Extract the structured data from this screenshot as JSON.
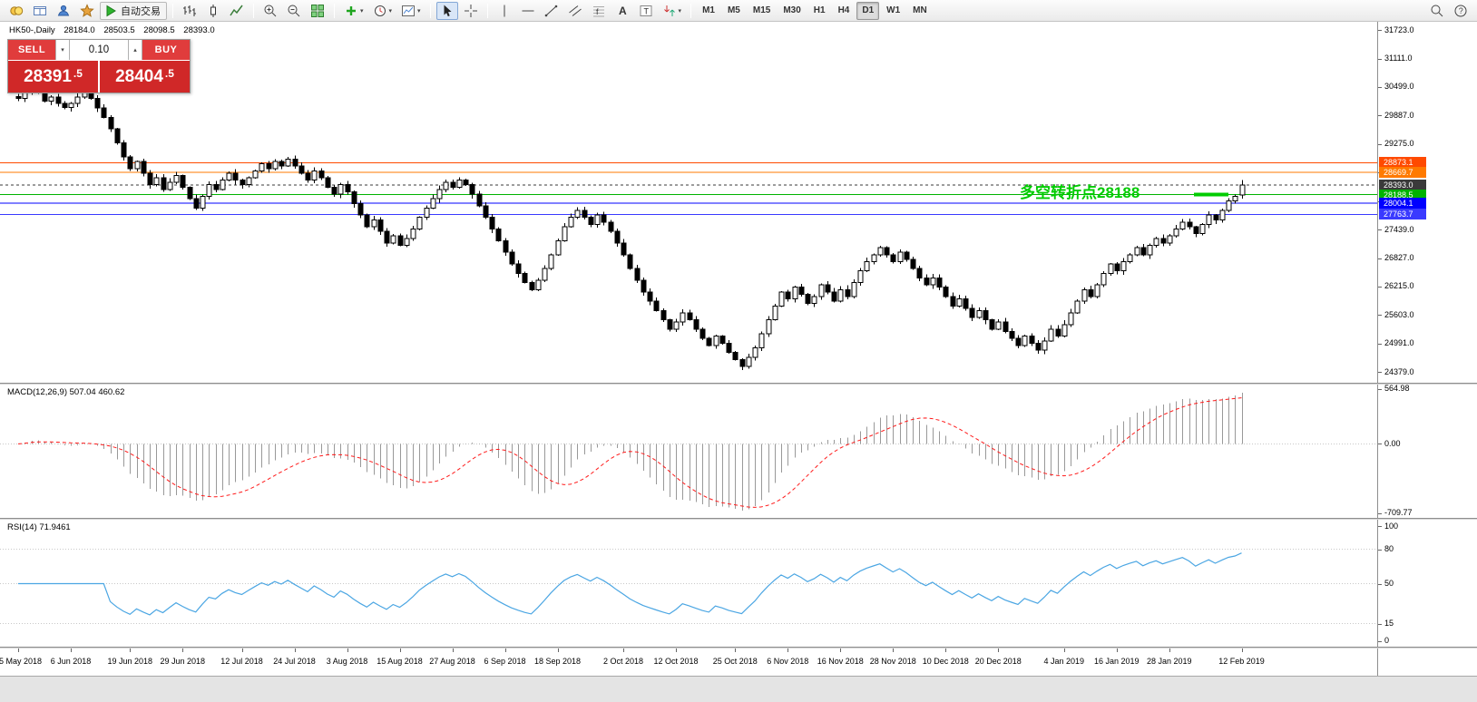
{
  "toolbar": {
    "items": [
      {
        "t": "btn",
        "name": "new-order-button",
        "icon": "order"
      },
      {
        "t": "btn",
        "name": "charts-button",
        "icon": "window"
      },
      {
        "t": "btn",
        "name": "market-watch-button",
        "icon": "profile"
      },
      {
        "t": "btn",
        "name": "navigator-button",
        "icon": "star"
      },
      {
        "t": "toggle",
        "name": "autotrading-button",
        "icon": "play",
        "label": "自动交易",
        "boxed": true
      },
      {
        "t": "sep"
      },
      {
        "t": "btn",
        "name": "bar-chart-button",
        "icon": "bars"
      },
      {
        "t": "btn",
        "name": "candlestick-chart-button",
        "icon": "candle"
      },
      {
        "t": "btn",
        "name": "line-chart-button",
        "icon": "linechart"
      },
      {
        "t": "sep"
      },
      {
        "t": "btn",
        "name": "zoom-in-button",
        "icon": "zoomin"
      },
      {
        "t": "btn",
        "name": "zoom-out-button",
        "icon": "zoomout"
      },
      {
        "t": "btn",
        "name": "tile-windows-button",
        "icon": "tile"
      },
      {
        "t": "sep"
      },
      {
        "t": "btn",
        "name": "new-chart-button",
        "icon": "plus",
        "caret": true
      },
      {
        "t": "btn",
        "name": "periods-button",
        "icon": "clock",
        "caret": true
      },
      {
        "t": "btn",
        "name": "templates-button",
        "icon": "template",
        "caret": true
      },
      {
        "t": "sep"
      },
      {
        "t": "btn",
        "name": "cursor-tool-button",
        "icon": "cursor",
        "active": true
      },
      {
        "t": "btn",
        "name": "crosshair-tool-button",
        "icon": "crosshair"
      },
      {
        "t": "sep"
      },
      {
        "t": "btn",
        "name": "vertical-line-tool-button",
        "icon": "vline"
      },
      {
        "t": "btn",
        "name": "horizontal-line-tool-button",
        "icon": "hline"
      },
      {
        "t": "btn",
        "name": "trendline-tool-button",
        "icon": "trend"
      },
      {
        "t": "btn",
        "name": "channel-tool-button",
        "icon": "channel"
      },
      {
        "t": "btn",
        "name": "fibonacci-tool-button",
        "icon": "fibo"
      },
      {
        "t": "btn",
        "name": "text-tool-button",
        "icon": "textA"
      },
      {
        "t": "btn",
        "name": "label-tool-button",
        "icon": "labelT"
      },
      {
        "t": "btn",
        "name": "arrows-tool-button",
        "icon": "arrowobj",
        "caret": true
      },
      {
        "t": "sep"
      },
      {
        "t": "tf",
        "name": "timeframe-m1",
        "label": "M1"
      },
      {
        "t": "tf",
        "name": "timeframe-m5",
        "label": "M5"
      },
      {
        "t": "tf",
        "name": "timeframe-m15",
        "label": "M15"
      },
      {
        "t": "tf",
        "name": "timeframe-m30",
        "label": "M30"
      },
      {
        "t": "tf",
        "name": "timeframe-h1",
        "label": "H1"
      },
      {
        "t": "tf",
        "name": "timeframe-h4",
        "label": "H4"
      },
      {
        "t": "tf",
        "name": "timeframe-d1",
        "label": "D1",
        "active": true
      },
      {
        "t": "tf",
        "name": "timeframe-w1",
        "label": "W1"
      },
      {
        "t": "tf",
        "name": "timeframe-mn",
        "label": "MN"
      },
      {
        "t": "btn",
        "name": "search-button",
        "icon": "search",
        "right": true
      },
      {
        "t": "btn",
        "name": "help-button",
        "icon": "help"
      }
    ]
  },
  "symbol_line": {
    "symbol": "HK50-,Daily",
    "open": "28184.0",
    "high": "28503.5",
    "low": "28098.5",
    "close": "28393.0"
  },
  "trade_panel": {
    "sell_label": "SELL",
    "buy_label": "BUY",
    "volume": "0.10",
    "sell_price_main": "28391",
    "sell_price_frac": ".5",
    "buy_price_main": "28404",
    "buy_price_frac": ".5"
  },
  "annotation": {
    "text": "多空转折点28188",
    "color": "#00cc00",
    "line_value": 28188.5
  },
  "chart_data": [
    {
      "type": "candlestick",
      "symbol": "HK50",
      "timeframe": "Daily",
      "title": "HK50-,Daily",
      "last_candle": {
        "open": 28184.0,
        "high": 28503.5,
        "low": 28098.5,
        "close": 28393.0
      },
      "ylim": [
        24150,
        31900
      ],
      "y_ticks": [
        "31723.0",
        "31111.0",
        "30499.0",
        "29887.0",
        "29275.0",
        "28663.0",
        "28051.0",
        "27439.0",
        "26827.0",
        "26215.0",
        "25603.0",
        "24991.0",
        "24379.0"
      ],
      "x_labels": [
        {
          "label": "25 May 2018",
          "i": 0
        },
        {
          "label": "6 Jun 2018",
          "i": 8
        },
        {
          "label": "19 Jun 2018",
          "i": 17
        },
        {
          "label": "29 Jun 2018",
          "i": 25
        },
        {
          "label": "12 Jul 2018",
          "i": 34
        },
        {
          "label": "24 Jul 2018",
          "i": 42
        },
        {
          "label": "3 Aug 2018",
          "i": 50
        },
        {
          "label": "15 Aug 2018",
          "i": 58
        },
        {
          "label": "27 Aug 2018",
          "i": 66
        },
        {
          "label": "6 Sep 2018",
          "i": 74
        },
        {
          "label": "18 Sep 2018",
          "i": 82
        },
        {
          "label": "2 Oct 2018",
          "i": 92
        },
        {
          "label": "12 Oct 2018",
          "i": 100
        },
        {
          "label": "25 Oct 2018",
          "i": 109
        },
        {
          "label": "6 Nov 2018",
          "i": 117
        },
        {
          "label": "16 Nov 2018",
          "i": 125
        },
        {
          "label": "28 Nov 2018",
          "i": 133
        },
        {
          "label": "10 Dec 2018",
          "i": 141
        },
        {
          "label": "20 Dec 2018",
          "i": 149
        },
        {
          "label": "4 Jan 2019",
          "i": 159
        },
        {
          "label": "16 Jan 2019",
          "i": 167
        },
        {
          "label": "28 Jan 2019",
          "i": 175
        },
        {
          "label": "12 Feb 2019",
          "i": 186
        }
      ],
      "closes": [
        30250,
        30400,
        30520,
        30380,
        30200,
        30280,
        30150,
        30060,
        30150,
        30280,
        30420,
        30250,
        30050,
        29850,
        29600,
        29300,
        29000,
        28750,
        28900,
        28650,
        28400,
        28550,
        28300,
        28450,
        28600,
        28350,
        28100,
        27900,
        28150,
        28400,
        28300,
        28500,
        28650,
        28500,
        28400,
        28550,
        28700,
        28850,
        28750,
        28900,
        28800,
        28950,
        28800,
        28650,
        28500,
        28700,
        28550,
        28350,
        28200,
        28400,
        28250,
        28000,
        27750,
        27500,
        27650,
        27400,
        27150,
        27300,
        27100,
        27250,
        27450,
        27700,
        27900,
        28100,
        28300,
        28450,
        28350,
        28500,
        28400,
        28200,
        27950,
        27700,
        27450,
        27200,
        26950,
        26700,
        26500,
        26300,
        26150,
        26350,
        26600,
        26900,
        27200,
        27500,
        27700,
        27850,
        27700,
        27550,
        27750,
        27600,
        27400,
        27150,
        26900,
        26600,
        26350,
        26100,
        25900,
        25700,
        25500,
        25300,
        25450,
        25650,
        25500,
        25300,
        25100,
        24950,
        25150,
        25000,
        24800,
        24650,
        24500,
        24700,
        24900,
        25200,
        25500,
        25800,
        26100,
        25950,
        26200,
        26050,
        25850,
        26000,
        26250,
        26100,
        25900,
        26150,
        26000,
        26300,
        26550,
        26750,
        26900,
        27050,
        26900,
        26750,
        26950,
        26800,
        26600,
        26400,
        26250,
        26400,
        26200,
        26000,
        25800,
        25950,
        25750,
        25550,
        25700,
        25500,
        25300,
        25450,
        25250,
        25100,
        24950,
        25150,
        25000,
        24850,
        25050,
        25300,
        25150,
        25400,
        25650,
        25900,
        26150,
        26000,
        26250,
        26500,
        26700,
        26550,
        26750,
        26900,
        27050,
        26900,
        27100,
        27250,
        27150,
        27300,
        27450,
        27600,
        27500,
        27350,
        27550,
        27750,
        27650,
        27850,
        28050,
        28150,
        28393
      ],
      "levels": [
        {
          "value": 28873.1,
          "label": "28873.1",
          "color": "#ff4a00",
          "current": false
        },
        {
          "value": 28669.7,
          "label": "28669.7",
          "color": "#ff7a00",
          "current": false
        },
        {
          "value": 28393.0,
          "label": "28393.0",
          "color": "#3a3a3a",
          "current": true
        },
        {
          "value": 28188.5,
          "label": "28188.5",
          "color": "#00b300",
          "current": false
        },
        {
          "value": 28004.1,
          "label": "28004.1",
          "color": "#0000ff",
          "current": false
        },
        {
          "value": 27763.7,
          "label": "27763.7",
          "color": "#3a3aff",
          "current": false
        }
      ]
    },
    {
      "type": "bar",
      "name": "MACD",
      "settings": "12,26,9",
      "value_main": 507.04,
      "value_signal": 460.62,
      "legend": "MACD(12,26,9) 507.04 460.62",
      "y_ticks": [
        "564.98",
        "0.00",
        "-709.77"
      ],
      "ylim": [
        -760,
        600
      ],
      "colors": {
        "histogram": "#999999",
        "signal": "#ff1a1a"
      }
    },
    {
      "type": "line",
      "name": "RSI",
      "settings": "14",
      "value": 71.9461,
      "legend": "RSI(14) 71.9461",
      "y_ticks": [
        "100",
        "80",
        "50",
        "15",
        "0"
      ],
      "level_lines": [
        80,
        50,
        15
      ],
      "ylim": [
        -5,
        105
      ],
      "color": "#4ba6e3"
    }
  ]
}
